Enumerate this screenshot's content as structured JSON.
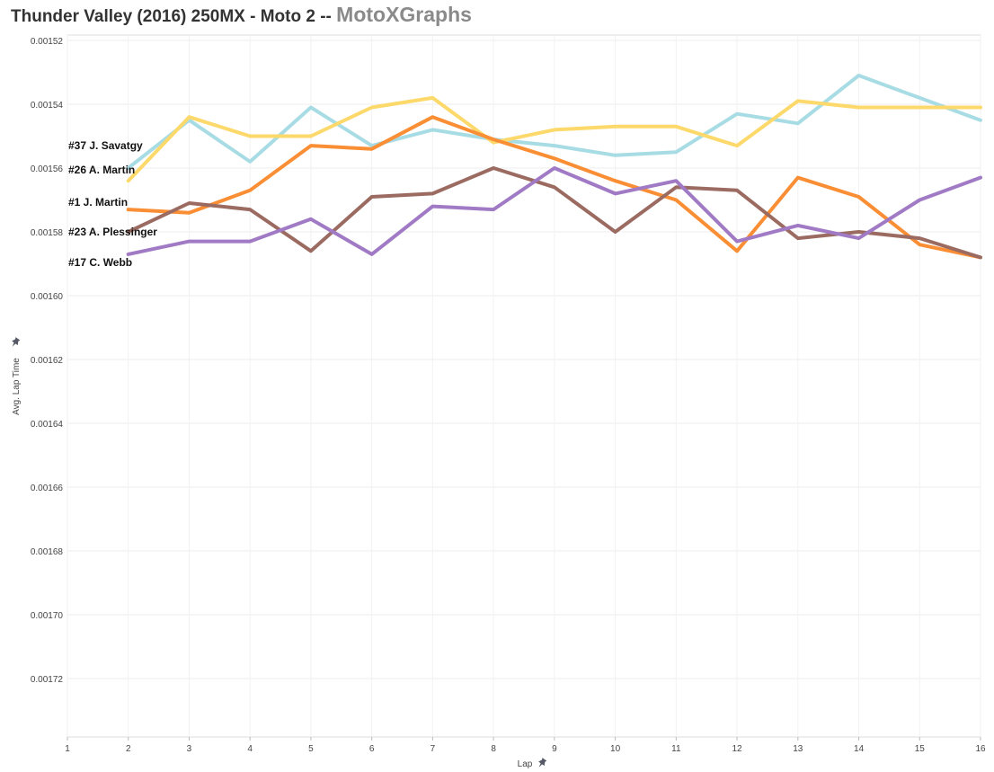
{
  "title": {
    "main": "Thunder Valley (2016) 250MX - Moto 2 --",
    "brand": "MotoXGraphs"
  },
  "chart_data": {
    "type": "line",
    "title": "Thunder Valley (2016) 250MX - Moto 2 -- MotoXGraphs",
    "xlabel": "Lap",
    "ylabel": "Avg. Lap Time",
    "xlim": [
      1,
      16
    ],
    "ylim": [
      0.00152,
      0.00174
    ],
    "y_reversed": true,
    "x_ticks": [
      1,
      2,
      3,
      4,
      5,
      6,
      7,
      8,
      9,
      10,
      11,
      12,
      13,
      14,
      15,
      16
    ],
    "y_ticks": [
      0.00152,
      0.00154,
      0.00156,
      0.00158,
      0.0016,
      0.00162,
      0.00164,
      0.00166,
      0.00168,
      0.0017,
      0.00172
    ],
    "y_tick_labels": [
      "0.00152",
      "0.00154",
      "0.00156",
      "0.00158",
      "0.00160",
      "0.00162",
      "0.00164",
      "0.00166",
      "0.00168",
      "0.00170",
      "0.00172"
    ],
    "grid": true,
    "x": [
      2,
      3,
      4,
      5,
      6,
      7,
      8,
      9,
      10,
      11,
      12,
      13,
      14,
      15,
      16
    ],
    "series": [
      {
        "name": "#37 J. Savatgy",
        "color": "#a8dce4",
        "values": [
          0.00156,
          0.001545,
          0.001558,
          0.001541,
          0.001553,
          0.001548,
          0.001551,
          0.001553,
          0.001556,
          0.001555,
          0.001543,
          0.001546,
          0.001531,
          0.001538,
          0.001545
        ]
      },
      {
        "name": "#26 A. Martin",
        "color": "#fcd96a",
        "values": [
          0.001564,
          0.001544,
          0.00155,
          0.00155,
          0.001541,
          0.001538,
          0.001552,
          0.001548,
          0.001547,
          0.001547,
          0.001553,
          0.001539,
          0.001541,
          0.001541,
          0.001541
        ]
      },
      {
        "name": "#1 J. Martin",
        "color": "#f98e35",
        "values": [
          0.001573,
          0.001574,
          0.001567,
          0.001553,
          0.001554,
          0.001544,
          0.001551,
          0.001557,
          0.001564,
          0.00157,
          0.001586,
          0.001563,
          0.001569,
          0.001584,
          0.001588
        ]
      },
      {
        "name": "#23 A. Plessinger",
        "color": "#9b6b61",
        "values": [
          0.00158,
          0.001571,
          0.001573,
          0.001586,
          0.001569,
          0.001568,
          0.00156,
          0.001566,
          0.00158,
          0.001566,
          0.001567,
          0.001582,
          0.00158,
          0.001582,
          0.001588
        ]
      },
      {
        "name": "#17 C. Webb",
        "color": "#a07ac4",
        "values": [
          0.001587,
          0.001583,
          0.001583,
          0.001576,
          0.001587,
          0.001572,
          0.001573,
          0.00156,
          0.001568,
          0.001564,
          0.001583,
          0.001578,
          0.001582,
          0.00157,
          0.001563
        ]
      }
    ]
  }
}
